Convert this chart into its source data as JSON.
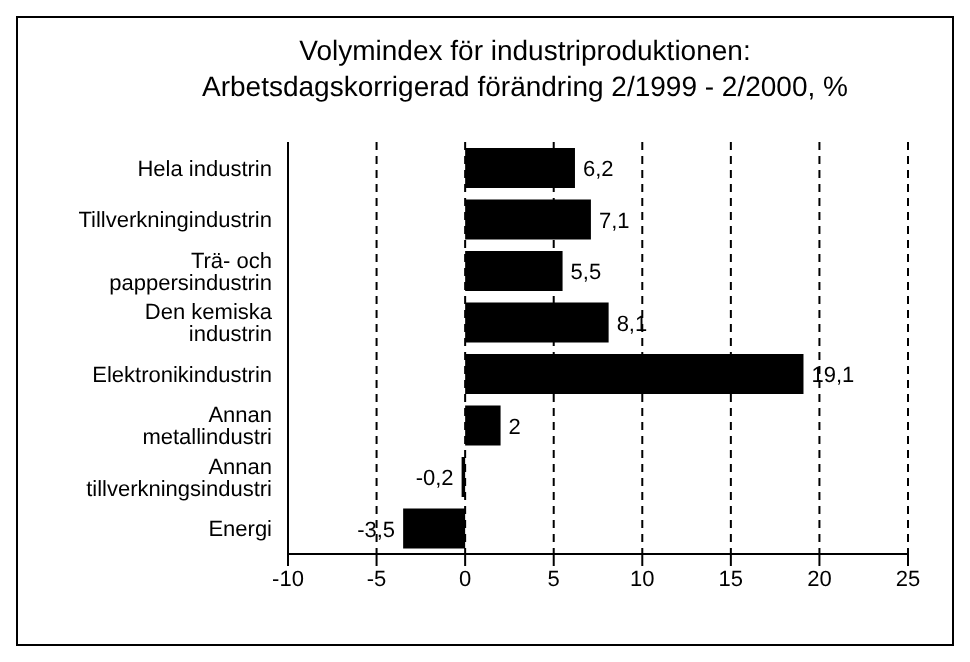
{
  "chart_data": {
    "type": "bar",
    "orientation": "horizontal",
    "title": "Volymindex för industriproduktionen:",
    "subtitle": "Arbetsdagskorrigerad förändring 2/1999 - 2/2000, %",
    "categories": [
      "Hela industrin",
      "Tillverkningindustrin",
      "Trä- och pappersindustrin",
      "Den kemiska industrin",
      "Elektronikindustrin",
      "Annan metallindustri",
      "Annan tillverkningsindustri",
      "Energi"
    ],
    "values": [
      6.2,
      7.1,
      5.5,
      8.1,
      19.1,
      2,
      -0.2,
      -3.5
    ],
    "value_labels": [
      "6,2",
      "7,1",
      "5,5",
      "8,1",
      "19,1",
      "2",
      "-0,2",
      "-3,5"
    ],
    "color": "#000000",
    "xlim": [
      -10,
      25
    ],
    "xticks": [
      -10,
      -5,
      0,
      5,
      10,
      15,
      20,
      25
    ],
    "grid": "x"
  }
}
